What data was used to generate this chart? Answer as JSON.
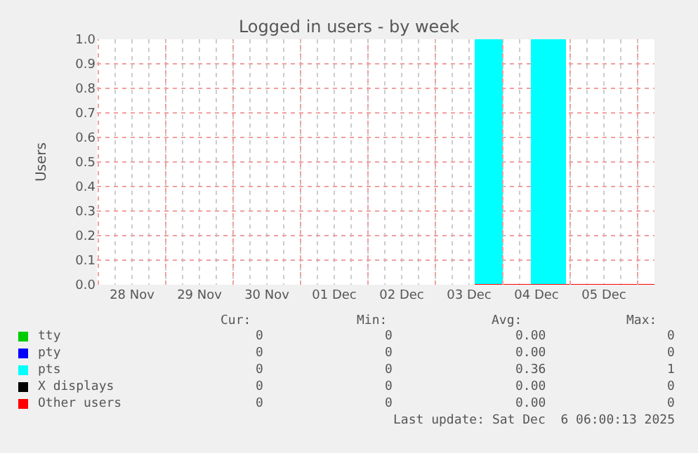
{
  "chart_data": {
    "type": "step",
    "title": "Logged in users - by week",
    "ylabel": "Users",
    "xlim": [
      "2025-11-27T23:30",
      "2025-12-06T06:00"
    ],
    "xticks": [
      {
        "value": "2025-11-28T12:00",
        "label": "28 Nov"
      },
      {
        "value": "2025-11-29T12:00",
        "label": "29 Nov"
      },
      {
        "value": "2025-11-30T12:00",
        "label": "30 Nov"
      },
      {
        "value": "2025-12-01T12:00",
        "label": "01 Dec"
      },
      {
        "value": "2025-12-02T12:00",
        "label": "02 Dec"
      },
      {
        "value": "2025-12-03T12:00",
        "label": "03 Dec"
      },
      {
        "value": "2025-12-04T12:00",
        "label": "04 Dec"
      },
      {
        "value": "2025-12-05T12:00",
        "label": "05 Dec"
      }
    ],
    "ylim": [
      0,
      1
    ],
    "yticks": [
      {
        "value": 0,
        "label": "0.0"
      },
      {
        "value": 0.1,
        "label": "0.1"
      },
      {
        "value": 0.2,
        "label": "0.2"
      },
      {
        "value": 0.3,
        "label": "0.3"
      },
      {
        "value": 0.4,
        "label": "0.4"
      },
      {
        "value": 0.5,
        "label": "0.5"
      },
      {
        "value": 0.6,
        "label": "0.6"
      },
      {
        "value": 0.7,
        "label": "0.7"
      },
      {
        "value": 0.8,
        "label": "0.8"
      },
      {
        "value": 0.9,
        "label": "0.9"
      },
      {
        "value": 1,
        "label": "1.0"
      }
    ],
    "x": [
      "2025-12-03T14:00",
      "2025-12-04T00:00",
      "2025-12-04T10:00",
      "2025-12-04T22:30",
      "2025-12-06T06:00"
    ],
    "series": [
      {
        "name": "tty",
        "color": "#00cc00",
        "values": [
          null,
          null,
          null,
          null,
          null
        ]
      },
      {
        "name": "pty",
        "color": "#0000ff",
        "values": [
          null,
          null,
          null,
          null,
          null
        ]
      },
      {
        "name": "pts",
        "color": "#00ffff",
        "type": "area",
        "values": [
          1,
          0,
          1,
          0,
          0
        ]
      },
      {
        "name": "X displays",
        "color": "#000000",
        "values": [
          null,
          null,
          null,
          null,
          null
        ]
      },
      {
        "name": "Other users",
        "color": "#ff0000",
        "values": [
          0,
          0,
          0,
          0,
          0
        ]
      }
    ],
    "grid": true,
    "legend": "bottom left",
    "annotations": [
      "Cur:",
      "Min:",
      "Avg:",
      "Max:",
      "0",
      "0",
      "0.00",
      "0",
      "0",
      "0",
      "0.00",
      "0",
      "0",
      "0",
      "0.36",
      "1",
      "0",
      "0",
      "0.00",
      "0",
      "0",
      "0",
      "0.00",
      "0",
      "Last update: Sat Dec  6 06:00:13 2025"
    ]
  }
}
